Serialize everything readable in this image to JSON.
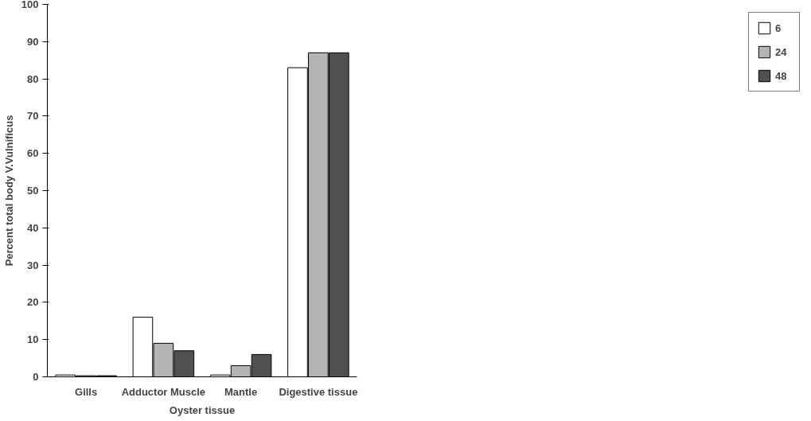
{
  "chart_data": {
    "type": "bar",
    "xlabel": "Oyster tissue",
    "ylabel": "Percent total body V.Vulnificus",
    "categories": [
      "Gills",
      "Adductor Muscle",
      "Mantle",
      "Digestive tissue"
    ],
    "series": [
      {
        "name": "6",
        "color": "#ffffff",
        "values": [
          0.5,
          16,
          0.5,
          83
        ]
      },
      {
        "name": "24",
        "color": "#b4b4b4",
        "values": [
          0.3,
          9,
          3,
          87
        ]
      },
      {
        "name": "48",
        "color": "#505050",
        "values": [
          0.3,
          7,
          6,
          87
        ]
      }
    ],
    "ylim": [
      0,
      100
    ],
    "yticks": [
      0,
      10,
      20,
      30,
      40,
      50,
      60,
      70,
      80,
      90,
      100
    ],
    "grid": false,
    "legend": "right"
  }
}
